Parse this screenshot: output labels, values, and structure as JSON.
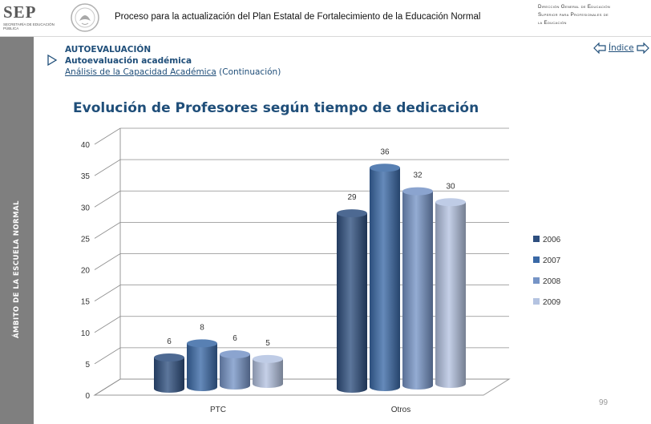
{
  "header": {
    "logo_text": "SEP",
    "logo_subtext": "SECRETARÍA DE EDUCACIÓN PÚBLICA",
    "title": "Proceso para la actualización del Plan Estatal de Fortalecimiento de la Educación Normal",
    "org_lines": [
      "Dirección General de Educación",
      "Superior para Profesionales de",
      "la Educación"
    ]
  },
  "sidebar": {
    "label": "ÁMBITO DE LA ESCUELA NORMAL"
  },
  "breadcrumb": {
    "section": "AUTOEVALUACIÓN",
    "subsection": "Autoevaluación académica",
    "link": "Análisis de la Capacidad Académica",
    "suffix": " (Continuación)"
  },
  "nav": {
    "index_label": "Índice"
  },
  "page_number": "99",
  "colors": {
    "2006": "#2e4f7f",
    "2007": "#3a69a6",
    "2008": "#7694c6",
    "2009": "#b4c3e1",
    "title": "#1f4e79"
  },
  "chart_data": {
    "type": "bar",
    "title": "Evolución de Profesores según tiempo de dedicación",
    "categories": [
      "PTC",
      "Otros"
    ],
    "series": [
      {
        "name": "2006",
        "values": [
          6,
          29
        ]
      },
      {
        "name": "2007",
        "values": [
          8,
          36
        ]
      },
      {
        "name": "2008",
        "values": [
          6,
          32
        ]
      },
      {
        "name": "2009",
        "values": [
          5,
          30
        ]
      }
    ],
    "ylim": [
      0,
      40
    ],
    "yticks": [
      "0",
      "5",
      "10",
      "15",
      "20",
      "25",
      "30",
      "35",
      "40"
    ],
    "grid": true,
    "legend": "right",
    "style": "3d-cylinder"
  }
}
